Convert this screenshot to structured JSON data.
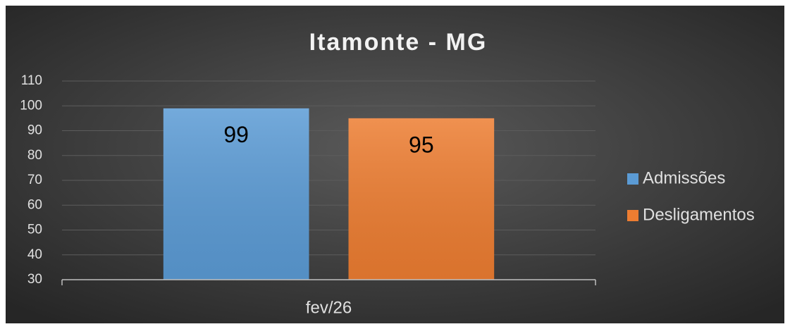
{
  "chart_data": {
    "type": "bar",
    "title": "Itamonte - MG",
    "categories": [
      "fev/26"
    ],
    "series": [
      {
        "name": "Admissões",
        "color": "#5b9bd5",
        "values": [
          99
        ]
      },
      {
        "name": "Desligamentos",
        "color": "#ed7d31",
        "values": [
          95
        ]
      }
    ],
    "ylim": [
      30,
      110
    ],
    "yticks": [
      30,
      40,
      50,
      60,
      70,
      80,
      90,
      100,
      110
    ],
    "grid": true,
    "legend": "right"
  }
}
